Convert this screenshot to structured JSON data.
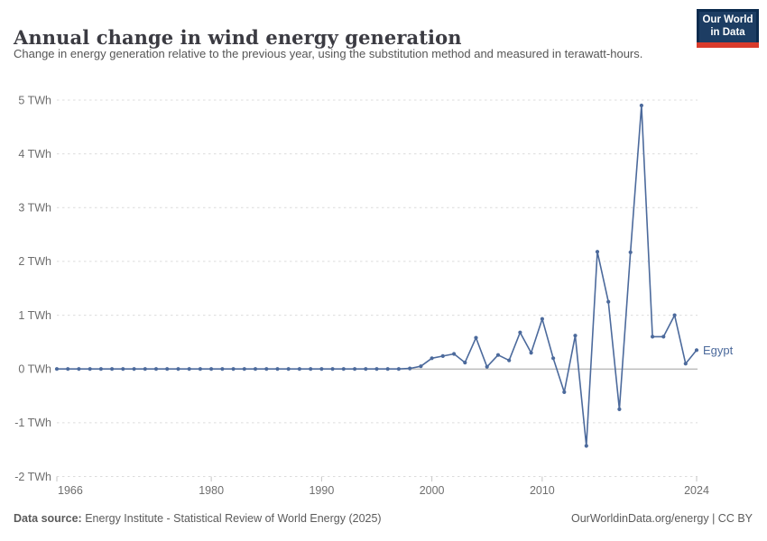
{
  "header": {
    "title": "Annual change in wind energy generation",
    "subtitle": "Change in energy generation relative to the previous year, using the substitution method and measured in terawatt-hours.",
    "logo": {
      "line1": "Our World",
      "line2": "in Data"
    }
  },
  "footer": {
    "source_label": "Data source:",
    "source_text": " Energy Institute - Statistical Review of World Energy (2025)",
    "right_text": "OurWorldinData.org/energy | CC BY"
  },
  "colors": {
    "series_line": "#4C6A9C",
    "entity_label": "#4C6A9C",
    "gridline": "#DCDCDC",
    "zero_line": "#A0A0A0",
    "tick_mark": "#C6C6C6",
    "axis_label": "#6E6E6E",
    "logo_navy": "#1D3D63",
    "logo_border": "#0C2B4E",
    "logo_red": "#D93A2B"
  },
  "chart_data": {
    "type": "line",
    "title": "Annual change in wind energy generation",
    "subtitle": "Change in energy generation relative to the previous year, using the substitution method and measured in terawatt-hours.",
    "unit": "TWh",
    "grid": true,
    "legend_position": "end-of-line label",
    "xlim": [
      1966,
      2024
    ],
    "ylim": [
      -2,
      5
    ],
    "x_ticks": [
      1966,
      1980,
      1990,
      2000,
      2010,
      2024
    ],
    "y_ticks": [
      {
        "value": 5,
        "label": "5 TWh"
      },
      {
        "value": 4,
        "label": "4 TWh"
      },
      {
        "value": 3,
        "label": "3 TWh"
      },
      {
        "value": 2,
        "label": "2 TWh"
      },
      {
        "value": 1,
        "label": "1 TWh"
      },
      {
        "value": 0,
        "label": "0 TWh"
      },
      {
        "value": -1,
        "label": "-1 TWh"
      },
      {
        "value": -2,
        "label": "-2 TWh"
      }
    ],
    "series": [
      {
        "name": "Egypt",
        "color": "#4C6A9C",
        "years": [
          1966,
          1967,
          1968,
          1969,
          1970,
          1971,
          1972,
          1973,
          1974,
          1975,
          1976,
          1977,
          1978,
          1979,
          1980,
          1981,
          1982,
          1983,
          1984,
          1985,
          1986,
          1987,
          1988,
          1989,
          1990,
          1991,
          1992,
          1993,
          1994,
          1995,
          1996,
          1997,
          1998,
          1999,
          2000,
          2001,
          2002,
          2003,
          2004,
          2005,
          2006,
          2007,
          2008,
          2009,
          2010,
          2011,
          2012,
          2013,
          2014,
          2015,
          2016,
          2017,
          2018,
          2019,
          2020,
          2021,
          2022,
          2023,
          2024
        ],
        "values": [
          0,
          0,
          0,
          0,
          0,
          0,
          0,
          0,
          0,
          0,
          0,
          0,
          0,
          0,
          0,
          0,
          0,
          0,
          0,
          0,
          0,
          0,
          0,
          0,
          0,
          0,
          0,
          0,
          0,
          0,
          0,
          0,
          0.01,
          0.05,
          0.2,
          0.24,
          0.28,
          0.12,
          0.58,
          0.04,
          0.26,
          0.16,
          0.68,
          0.3,
          0.93,
          0.2,
          -0.43,
          0.62,
          -1.43,
          2.18,
          1.25,
          -0.75,
          2.17,
          4.9,
          0.6,
          0.6,
          1.0,
          0.1,
          0.35
        ]
      }
    ]
  }
}
